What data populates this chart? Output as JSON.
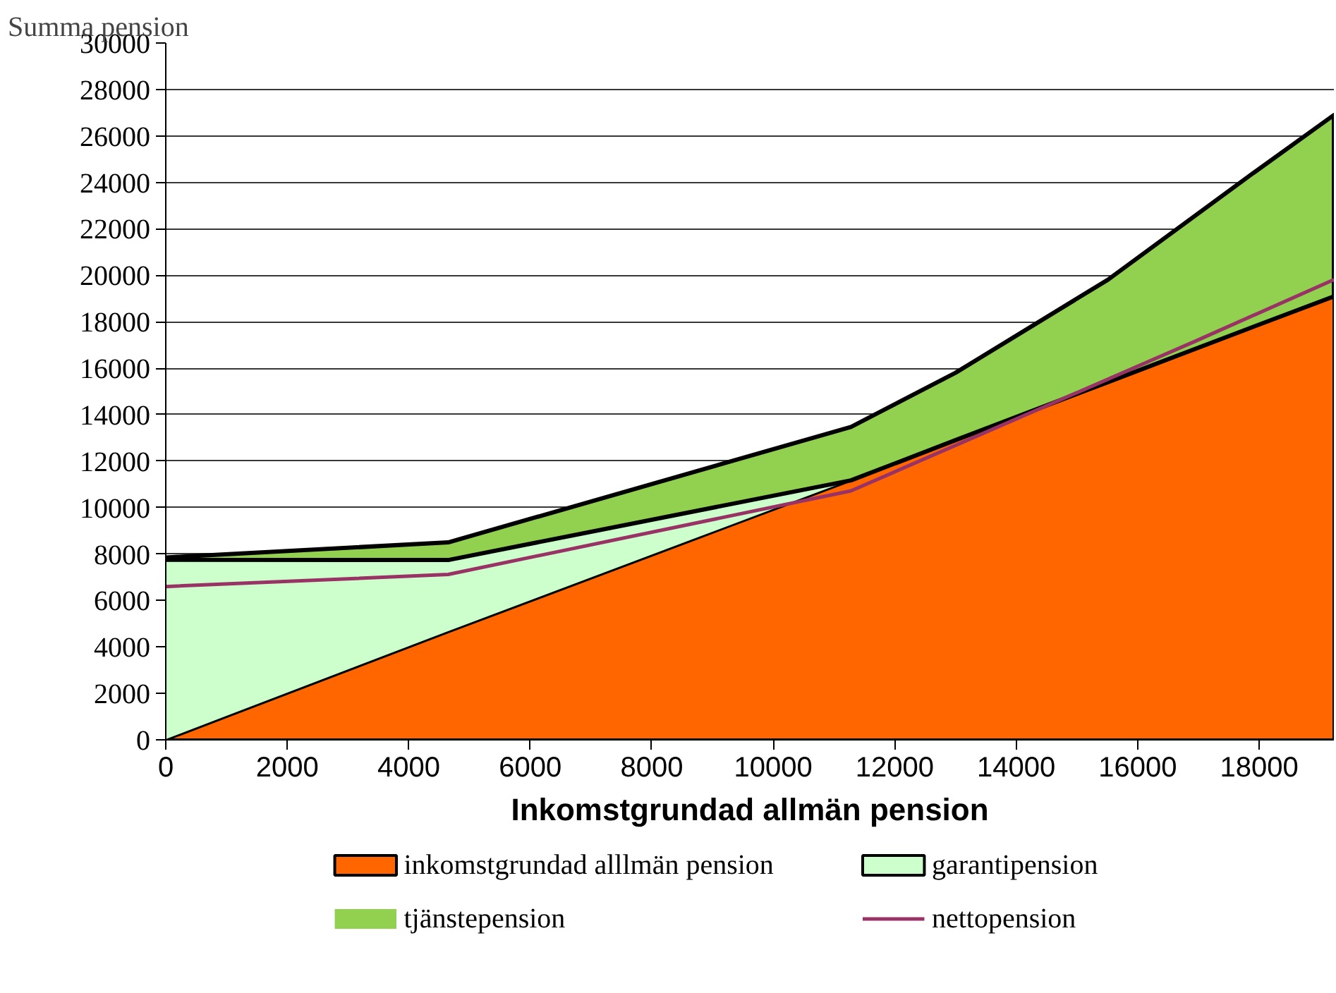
{
  "chart_data": {
    "type": "area",
    "stacked": true,
    "ylabel": "Summa pension",
    "xlabel": "Inkomstgrundad allmän pension",
    "x": [
      0,
      4650,
      11280,
      13000,
      15510,
      17870,
      19230
    ],
    "series": [
      {
        "name": "inkomstgrundad alllmän pension",
        "color": "#ff6600",
        "values": [
          0,
          4650,
          11170,
          12900,
          15400,
          17750,
          19090
        ]
      },
      {
        "name": "garantipension",
        "color": "#ccffcc",
        "values": [
          7750,
          3090,
          0,
          null,
          null,
          null,
          null
        ]
      },
      {
        "name": "tjänstepension",
        "color": "#92d050",
        "values": [
          100,
          760,
          2300,
          2900,
          4410,
          6590,
          7810
        ]
      },
      {
        "name": "nettopension",
        "type": "line",
        "color": "#993366",
        "x": [
          0,
          4650,
          11280,
          16920,
          19230
        ],
        "values": [
          6600,
          7120,
          10720,
          17130,
          19810
        ]
      }
    ],
    "xlim": [
      0,
      19230
    ],
    "ylim": [
      0,
      30000
    ],
    "xticks": [
      0,
      2000,
      4000,
      6000,
      8000,
      10000,
      12000,
      14000,
      16000,
      18000
    ],
    "yticks": [
      0,
      2000,
      4000,
      6000,
      8000,
      10000,
      12000,
      14000,
      16000,
      18000,
      20000,
      22000,
      24000,
      26000,
      28000,
      30000
    ],
    "grid": "y",
    "legend": "bottom"
  }
}
